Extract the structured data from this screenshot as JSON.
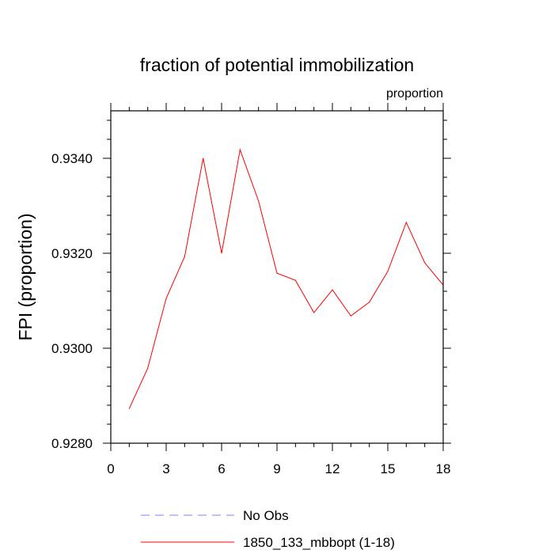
{
  "chart_data": {
    "type": "line",
    "title": "fraction of potential immobilization",
    "units_label": "proportion",
    "xlabel": "",
    "ylabel": "FPI  (proportion)",
    "xlim": [
      0,
      18
    ],
    "ylim": [
      0.928,
      0.935
    ],
    "x_ticks": [
      0,
      3,
      6,
      9,
      12,
      15,
      18
    ],
    "x_tick_labels": [
      "0",
      "3",
      "6",
      "9",
      "12",
      "15",
      "18"
    ],
    "y_ticks": [
      0.928,
      0.93,
      0.932,
      0.934
    ],
    "y_tick_labels": [
      "0.9280",
      "0.9300",
      "0.9320",
      "0.9340"
    ],
    "series": [
      {
        "name": "1850_133_mbbopt (1-18)",
        "color": "#ff0000",
        "style": "solid",
        "x": [
          1,
          2,
          3,
          4,
          5,
          6,
          7,
          8,
          9,
          10,
          11,
          12,
          13,
          14,
          15,
          16,
          17,
          18
        ],
        "y": [
          0.92873,
          0.92958,
          0.93105,
          0.93193,
          0.934,
          0.932,
          0.93418,
          0.9331,
          0.93158,
          0.93143,
          0.93075,
          0.93123,
          0.93068,
          0.93097,
          0.93162,
          0.93265,
          0.9318,
          0.93133
        ]
      }
    ],
    "legend": [
      {
        "label": "No Obs",
        "color": "#8080ff",
        "style": "dashed"
      },
      {
        "label": "1850_133_mbbopt (1-18)",
        "color": "#ff0000",
        "style": "solid"
      }
    ]
  }
}
